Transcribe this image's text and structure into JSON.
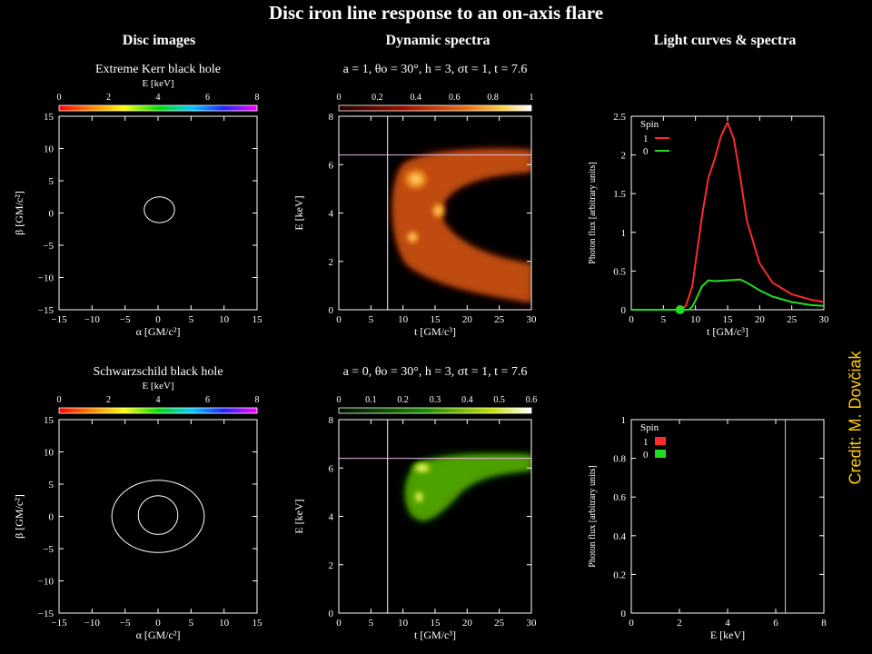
{
  "title": "Disc iron line response to an on-axis flare",
  "columns": [
    "Disc images",
    "Dynamic spectra",
    "Light curves & spectra"
  ],
  "credit": "Credit: M. Dovčiak",
  "colors": {
    "background": "#000000",
    "credit": "#ffcc00",
    "spin1": "#ff2a2a",
    "spin0": "#22dd22",
    "cursor": "#e6b8e6"
  },
  "chart_data": [
    {
      "type": "scatter",
      "title": "Extreme Kerr black hole",
      "colorbar": {
        "label": "E [keV]",
        "ticks": [
          "0",
          "2",
          "4",
          "6",
          "8"
        ]
      },
      "xlabel": "α [GM/c²]",
      "ylabel": "β [GM/c²]",
      "xlim": [
        -15,
        15
      ],
      "ylim": [
        -15,
        15
      ],
      "xticks": [
        "−15",
        "−10",
        "−5",
        "0",
        "5",
        "10",
        "15"
      ],
      "yticks": [
        "15",
        "10",
        "5",
        "0",
        "−5",
        "−10",
        "−15"
      ],
      "rings": [
        {
          "cx": 0.2,
          "cy": 0.5,
          "rx": 2.3,
          "ry": 2.0
        }
      ]
    },
    {
      "type": "heatmap",
      "title": "a = 1, θo = 30°, h = 3, σt = 1, t =  7.6",
      "colorbar": {
        "ticks": [
          "0",
          "0.2",
          "0.4",
          "0.6",
          "0.8",
          "1"
        ],
        "colormap": "heat"
      },
      "xlabel": "t [GM/c³]",
      "ylabel": "E [keV]",
      "xlim": [
        0,
        30
      ],
      "ylim": [
        0,
        8
      ],
      "xticks": [
        "0",
        "5",
        "10",
        "15",
        "20",
        "25",
        "30"
      ],
      "yticks": [
        "8",
        "6",
        "4",
        "2",
        "0"
      ],
      "cursor": {
        "t": 7.6,
        "E": 6.4
      }
    },
    {
      "type": "line",
      "xlabel": "t [GM/c³]",
      "ylabel": "Photon flux [arbitrary units]",
      "xlim": [
        0,
        30
      ],
      "ylim": [
        0,
        2.5
      ],
      "xticks": [
        "0",
        "5",
        "10",
        "15",
        "20",
        "25",
        "30"
      ],
      "yticks": [
        "2.5",
        "2",
        "1.5",
        "1",
        "0.5",
        "0"
      ],
      "legend": {
        "title": "Spin",
        "position": "top-left"
      },
      "series": [
        {
          "name": "1",
          "x": [
            0,
            6,
            7.6,
            8.5,
            9.5,
            10,
            11,
            12,
            13,
            14,
            15,
            16,
            17,
            18,
            20,
            22,
            25,
            28,
            30
          ],
          "y": [
            0,
            0,
            0,
            0.05,
            0.3,
            0.6,
            1.2,
            1.7,
            1.95,
            2.25,
            2.42,
            2.2,
            1.7,
            1.15,
            0.6,
            0.35,
            0.2,
            0.13,
            0.1
          ]
        },
        {
          "name": "0",
          "x": [
            0,
            8,
            9,
            9.5,
            10,
            11,
            12,
            13,
            15,
            17,
            18,
            20,
            22,
            25,
            28,
            30
          ],
          "y": [
            0,
            0,
            0,
            0.04,
            0.12,
            0.3,
            0.38,
            0.37,
            0.38,
            0.39,
            0.35,
            0.25,
            0.17,
            0.1,
            0.06,
            0.05
          ]
        }
      ],
      "marker": {
        "x": 7.6,
        "y": 0
      }
    },
    {
      "type": "scatter",
      "title": "Schwarzschild black hole",
      "colorbar": {
        "label": "E [keV]",
        "ticks": [
          "0",
          "2",
          "4",
          "6",
          "8"
        ]
      },
      "xlabel": "α [GM/c²]",
      "ylabel": "β [GM/c²]",
      "xlim": [
        -15,
        15
      ],
      "ylim": [
        -15,
        15
      ],
      "xticks": [
        "−15",
        "−10",
        "−5",
        "0",
        "5",
        "10",
        "15"
      ],
      "yticks": [
        "15",
        "10",
        "5",
        "0",
        "−5",
        "−10",
        "−15"
      ],
      "rings": [
        {
          "cx": 0,
          "cy": 0.2,
          "rx": 3.0,
          "ry": 3.0
        },
        {
          "cx": 0,
          "cy": 0,
          "rx": 7.0,
          "ry": 5.6
        }
      ]
    },
    {
      "type": "heatmap",
      "title": "a = 0, θo = 30°, h = 3, σt = 1, t =  7.6",
      "colorbar": {
        "ticks": [
          "0",
          "0.1",
          "0.2",
          "0.3",
          "0.4",
          "0.5",
          "0.6"
        ],
        "colormap": "green"
      },
      "xlabel": "t [GM/c³]",
      "ylabel": "E [keV]",
      "xlim": [
        0,
        30
      ],
      "ylim": [
        0,
        8
      ],
      "xticks": [
        "0",
        "5",
        "10",
        "15",
        "20",
        "25",
        "30"
      ],
      "yticks": [
        "8",
        "6",
        "4",
        "2",
        "0"
      ],
      "cursor": {
        "t": 7.6,
        "E": 6.4
      }
    },
    {
      "type": "line",
      "xlabel": "E [keV]",
      "ylabel": "Photon flux [arbitrary units]",
      "xlim": [
        0,
        8
      ],
      "ylim": [
        0,
        1
      ],
      "xticks": [
        "0",
        "2",
        "4",
        "6",
        "8"
      ],
      "yticks": [
        "1",
        "0.8",
        "0.6",
        "0.4",
        "0.2",
        "0"
      ],
      "legend": {
        "title": "Spin",
        "position": "top-left"
      },
      "series": [
        {
          "name": "1",
          "x": [],
          "y": []
        },
        {
          "name": "0",
          "x": [],
          "y": []
        }
      ],
      "cursor": {
        "x": 6.4
      }
    }
  ]
}
